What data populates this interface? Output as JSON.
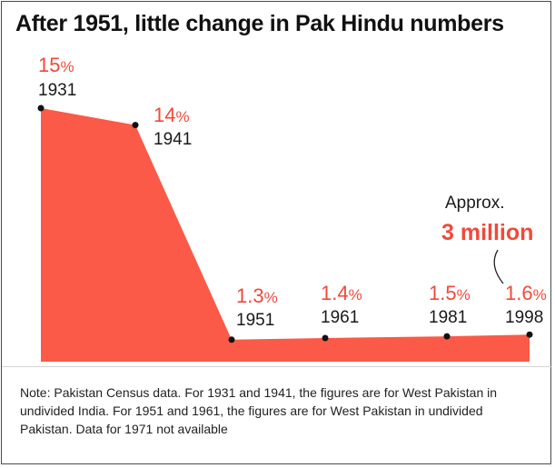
{
  "chart_data": {
    "type": "area",
    "title": "After 1951, little change in Pak Hindu numbers",
    "x": [
      "1931",
      "1941",
      "1951",
      "1961",
      "1981",
      "1998"
    ],
    "values": [
      15,
      14,
      1.3,
      1.4,
      1.5,
      1.6
    ],
    "value_labels": [
      "15",
      "14",
      "1.3",
      "1.4",
      "1.5",
      "1.6"
    ],
    "unit": "%",
    "annotation": {
      "line1": "Approx.",
      "line2": "3 million"
    },
    "ylim": [
      0,
      15.6
    ],
    "xlabel": "",
    "ylabel": "",
    "grid": false
  },
  "note": "Note: Pakistan Census data. For 1931 and 1941, the figures are for West Pakistan in undivided India. For 1951 and 1961, the figures are for West Pakistan in undivided Pakistan. Data for 1971 not available",
  "colors": {
    "area": "#fa5a47",
    "accent": "#f0493a",
    "point": "#111111"
  }
}
